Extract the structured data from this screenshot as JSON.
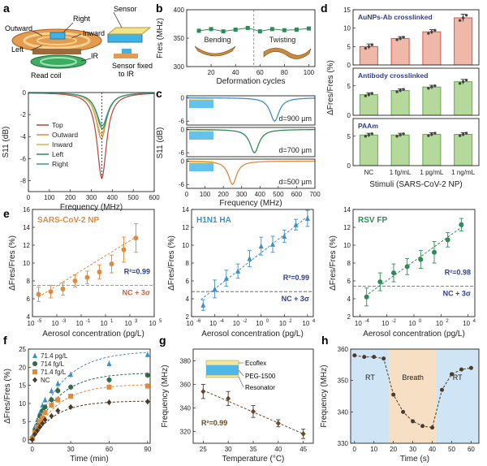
{
  "panel_letters": {
    "a": "a",
    "b": "b",
    "c": "c",
    "d": "d",
    "e": "e",
    "f": "f",
    "g": "g",
    "h": "h"
  },
  "schematic_a": {
    "right": "Right",
    "sensor": "Sensor",
    "outward": "Outward",
    "inward": "Inward",
    "left": "Left",
    "ir": "IR",
    "read_coil": "Read coil",
    "sensor_fixed": "Sensor fixed",
    "sensor_fixed2": "to IR"
  },
  "schematic_g": {
    "l1": "Ecoflex",
    "l2": "PEG-1500",
    "l3": "Resonator"
  },
  "colors": {
    "brown": "#b5433a",
    "orange": "#e08a3c",
    "yellow": "#d9b43a",
    "green": "#2e8b57",
    "teal": "#3a9a8c",
    "blue": "#3f8fc4",
    "navy": "#2f3e8f",
    "darkgreen": "#2d6b4a",
    "dark": "#4a3a2a",
    "rt_bg": "#cfe5f5",
    "breath_bg": "#f7dfc4",
    "bar_pink": "#f0b8a8",
    "bar_green": "#b5d99a",
    "bar_edge_red": "#d9534f",
    "bar_edge_green": "#6aa84f"
  },
  "chart_data": [
    {
      "id": "a",
      "type": "line",
      "xlabel": "Frequency (MHz)",
      "ylabel": "S11 (dB)",
      "xlim": [
        0,
        600
      ],
      "ylim": [
        -9,
        0
      ],
      "xticks": [
        0,
        100,
        200,
        300,
        400,
        500,
        600
      ],
      "yticks": [
        0,
        -2,
        -4,
        -6,
        -8
      ],
      "series": [
        {
          "name": "Top",
          "color": "#b5433a",
          "center": 350,
          "depth": -7.8,
          "width": 55
        },
        {
          "name": "Outward",
          "color": "#e08a3c",
          "center": 348,
          "depth": -4.2,
          "width": 60
        },
        {
          "name": "Inward",
          "color": "#d9b43a",
          "center": 348,
          "depth": -3.8,
          "width": 62
        },
        {
          "name": "Left",
          "color": "#2e8b57",
          "center": 352,
          "depth": -3.3,
          "width": 64
        },
        {
          "name": "Right",
          "color": "#3a9a8c",
          "center": 352,
          "depth": -3.0,
          "width": 66
        }
      ]
    },
    {
      "id": "b",
      "type": "scatter",
      "xlabel": "Deformation cycles",
      "ylabel": "Fres (MHz)",
      "xlim": [
        0,
        105
      ],
      "ylim": [
        300,
        400
      ],
      "xticks": [
        20,
        40,
        60,
        80,
        100
      ],
      "yticks": [
        300,
        350,
        400
      ],
      "x": [
        10,
        20,
        30,
        40,
        50,
        60,
        70,
        80,
        90,
        100
      ],
      "y": [
        363,
        366,
        362,
        365,
        368,
        362,
        366,
        364,
        365,
        367
      ],
      "annotations": [
        "Bending",
        "Twisting"
      ]
    },
    {
      "id": "c",
      "type": "line",
      "xlabel": "Frequency (MHz)",
      "ylabel": "S11 (dB)",
      "xlim": [
        0,
        700
      ],
      "xticks": [
        0,
        100,
        200,
        300,
        400,
        500,
        600,
        700
      ],
      "subplots": [
        {
          "label": "d=900 µm",
          "color": "#3f8fc4",
          "center": 480,
          "depth": -6,
          "width": 60
        },
        {
          "label": "d=700 µm",
          "color": "#2e8b57",
          "center": 370,
          "depth": -6,
          "width": 60
        },
        {
          "label": "d=500 µm",
          "color": "#e08a3c",
          "center": 250,
          "depth": -6,
          "width": 55
        }
      ]
    },
    {
      "id": "d",
      "type": "bar",
      "xlabel": "Stimuli (SARS-CoV-2 NP)",
      "ylabel": "ΔFres/Fres (%)",
      "categories": [
        "NC",
        "1 fg/mL",
        "1 pg/mL",
        "1 ng/mL"
      ],
      "subplots": [
        {
          "title": "AuNPs-Ab crosslinked",
          "values": [
            5.0,
            7.2,
            9.0,
            12.8
          ],
          "errors": [
            0.7,
            0.5,
            0.6,
            1.0
          ],
          "ylim": [
            0,
            15
          ],
          "yticks": [
            0,
            5,
            10,
            15
          ]
        },
        {
          "title": "Antibody crosslinked",
          "values": [
            3.5,
            4.2,
            4.8,
            5.7
          ],
          "errors": [
            0.3,
            0.3,
            0.3,
            0.4
          ],
          "ylim": [
            0,
            8
          ],
          "yticks": [
            0,
            5
          ]
        },
        {
          "title": "PAAm",
          "values": [
            5.2,
            5.2,
            5.3,
            5.3
          ],
          "errors": [
            0.3,
            0.3,
            0.3,
            0.3
          ],
          "ylim": [
            0,
            8
          ],
          "yticks": [
            0,
            5
          ]
        }
      ]
    },
    {
      "id": "e1",
      "type": "scatter",
      "title": "SARS-CoV-2 NP",
      "xlabel": "Aerosol concentration (pg/L)",
      "ylabel": "ΔFres/Fres (%)",
      "xscale": "log",
      "xlim": [
        -5,
        5
      ],
      "ylim": [
        4,
        16
      ],
      "xtick_exp": [
        -5,
        -3,
        -1,
        1,
        3,
        5
      ],
      "yticks": [
        4,
        6,
        8,
        10,
        12,
        14,
        16
      ],
      "x": [
        -4.5,
        -3.5,
        -2.5,
        -1.5,
        -0.5,
        0.5,
        1.5,
        2.5,
        3.5
      ],
      "y": [
        6.5,
        6.8,
        7.1,
        8.0,
        8.4,
        9.0,
        9.9,
        11.5,
        12.8
      ],
      "errors": [
        0.8,
        0.7,
        0.7,
        0.7,
        0.7,
        0.8,
        1.0,
        1.4,
        1.6
      ],
      "fit": {
        "x": [
          -4.5,
          3.6
        ],
        "y": [
          6.2,
          13.0
        ]
      },
      "threshold": 7.5,
      "r2": "R²=0.99",
      "nc_label": "NC + 3σ"
    },
    {
      "id": "e2",
      "type": "scatter",
      "title": "H1N1 HA",
      "xlabel": "Aerosol concentration (pg/L)",
      "ylabel": "ΔFres/Fres (%)",
      "xscale": "log",
      "xlim": [
        -6,
        4.5
      ],
      "ylim": [
        2,
        14
      ],
      "xtick_exp": [
        -6,
        -4,
        -2,
        0,
        2,
        4
      ],
      "yticks": [
        2,
        4,
        6,
        8,
        10,
        12,
        14
      ],
      "x": [
        -5,
        -4,
        -3,
        -2,
        -1,
        0,
        1,
        2,
        3,
        4
      ],
      "y": [
        3.3,
        5.1,
        6.3,
        7.1,
        8.5,
        9.9,
        10.1,
        11.0,
        12.3,
        13.0
      ],
      "errors": [
        0.6,
        1.0,
        0.9,
        0.8,
        0.9,
        1.0,
        0.9,
        0.7,
        0.6,
        0.9
      ],
      "fit": {
        "x": [
          -5.2,
          4.1
        ],
        "y": [
          3.9,
          13.3
        ]
      },
      "threshold": 4.8,
      "r2": "R²=0.99",
      "nc_label": "NC + 3σ"
    },
    {
      "id": "e3",
      "type": "scatter",
      "title": "RSV FP",
      "xlabel": "Aerosol concentration (pg/L)",
      "ylabel": "ΔFres/Fres (%)",
      "xscale": "log",
      "xlim": [
        -4.5,
        4.5
      ],
      "ylim": [
        2,
        14
      ],
      "xtick_exp": [
        -4,
        -2,
        0,
        2,
        4
      ],
      "yticks": [
        2,
        4,
        6,
        8,
        10,
        12,
        14
      ],
      "x": [
        -3.5,
        -2.5,
        -1.5,
        -0.5,
        0.5,
        1.5,
        2.5,
        3.5
      ],
      "y": [
        4.2,
        5.9,
        6.9,
        7.6,
        8.4,
        9.2,
        10.6,
        12.3
      ],
      "errors": [
        1.0,
        1.0,
        1.0,
        0.9,
        1.0,
        1.2,
        0.8,
        0.7
      ],
      "fit": {
        "x": [
          -3.6,
          3.7
        ],
        "y": [
          4.3,
          12.2
        ]
      },
      "threshold": 5.4,
      "r2": "R²=0.98",
      "nc_label": "NC + 3σ"
    },
    {
      "id": "f",
      "type": "scatter",
      "xlabel": "Time (min)",
      "ylabel": "ΔFres/Fres (%)",
      "xlim": [
        -3,
        92
      ],
      "ylim": [
        -1,
        25
      ],
      "xticks": [
        0,
        30,
        60,
        90
      ],
      "yticks": [
        0,
        5,
        10,
        15,
        20,
        25
      ],
      "x": [
        0,
        2,
        4,
        6,
        8,
        10,
        15,
        20,
        30,
        60,
        90
      ],
      "series": [
        {
          "name": "71.4 pg/L",
          "color": "#3f8fc4",
          "marker": "triangle",
          "y": [
            0.8,
            3.5,
            5.5,
            7.5,
            9.5,
            11.0,
            13.5,
            15.5,
            18.0,
            21.0,
            23.5
          ],
          "fit_max": 24.5,
          "fit_k": 0.045
        },
        {
          "name": "714 fg/L",
          "color": "#2d6b4a",
          "marker": "circle",
          "y": [
            0.5,
            2.5,
            4.0,
            6.5,
            8.0,
            9.0,
            11.0,
            13.5,
            14.5,
            16.5,
            17.8
          ],
          "fit_max": 18.5,
          "fit_k": 0.05
        },
        {
          "name": "71.4 fg/L",
          "color": "#e08a3c",
          "marker": "square",
          "y": [
            0.3,
            2.0,
            3.5,
            5.0,
            6.0,
            7.5,
            9.5,
            11.0,
            12.0,
            14.5,
            14.8
          ],
          "fit_max": 15.3,
          "fit_k": 0.05
        },
        {
          "name": "NC",
          "color": "#4a3a2a",
          "marker": "diamond",
          "y": [
            0.0,
            1.5,
            2.5,
            3.5,
            4.5,
            5.5,
            6.5,
            8.0,
            9.0,
            10.3,
            10.5
          ],
          "fit_max": 10.7,
          "fit_k": 0.055
        }
      ]
    },
    {
      "id": "g",
      "type": "scatter",
      "xlabel": "Temperature (°C)",
      "ylabel": "Frequency (MHz)",
      "xlim": [
        23,
        47
      ],
      "ylim": [
        310,
        390
      ],
      "xticks": [
        25,
        30,
        35,
        40,
        45
      ],
      "yticks": [
        320,
        340,
        360,
        380
      ],
      "x": [
        25,
        30,
        35,
        40,
        45
      ],
      "y": [
        354,
        348,
        337,
        327,
        318
      ],
      "errors": [
        6,
        6,
        5,
        3,
        4
      ],
      "fit": {
        "x": [
          25,
          45
        ],
        "y": [
          355,
          318
        ]
      },
      "r2": "R²=0.99"
    },
    {
      "id": "h",
      "type": "scatter",
      "xlabel": "Time (s)",
      "ylabel": "Frequency (MHz)",
      "xlim": [
        -2,
        64
      ],
      "ylim": [
        330,
        360
      ],
      "xticks": [
        0,
        10,
        20,
        30,
        40,
        50,
        60
      ],
      "yticks": [
        330,
        340,
        350,
        360
      ],
      "x": [
        0,
        5,
        10,
        15,
        20,
        25,
        30,
        35,
        40,
        45,
        50,
        55,
        60
      ],
      "y": [
        358,
        357.5,
        357.5,
        357,
        345.5,
        340,
        337,
        335.5,
        335,
        347,
        352,
        353.5,
        354
      ],
      "regions": [
        {
          "label": "RT",
          "from": -2,
          "to": 18
        },
        {
          "label": "Breath",
          "from": 18,
          "to": 42
        },
        {
          "label": "RT",
          "from": 42,
          "to": 64
        }
      ]
    }
  ]
}
